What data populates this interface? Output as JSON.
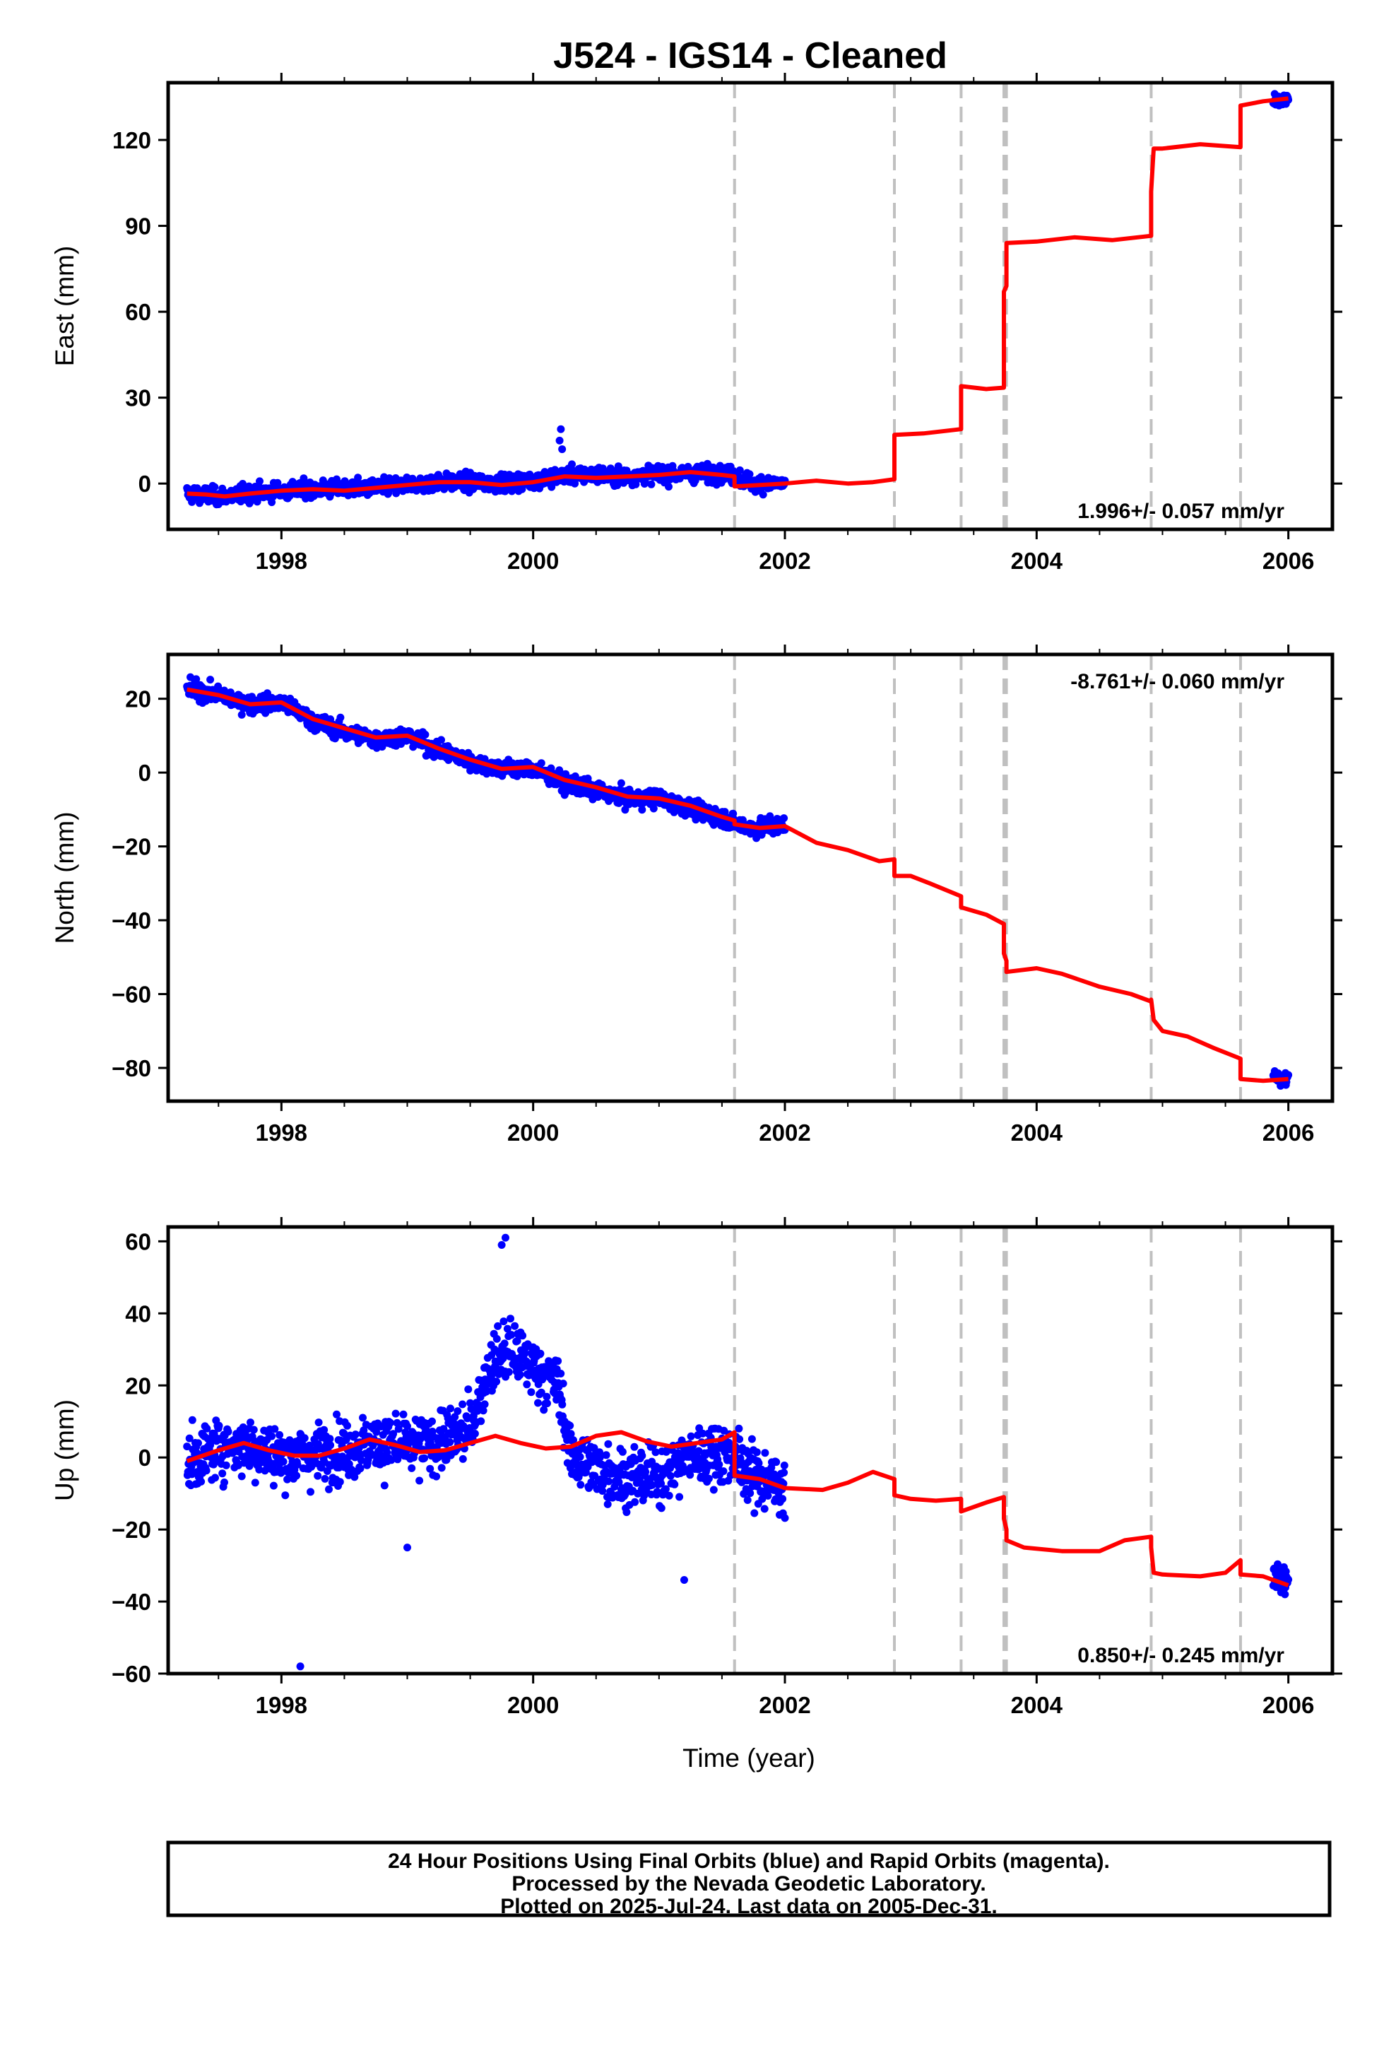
{
  "title": "J524  - IGS14 - Cleaned",
  "footer": {
    "line1": "24 Hour Positions Using Final Orbits (blue) and Rapid Orbits (magenta).",
    "line2": "Processed by the Nevada Geodetic Laboratory.",
    "line3": "Plotted on 2025-Jul-24. Last data on 2005-Dec-31."
  },
  "colors": {
    "final_points": "#0000ff",
    "model": "#ff0000",
    "offset_lines": "#c0c0c0",
    "frame": "#000000"
  },
  "chart_data": [
    {
      "type": "scatter",
      "ylabel": "East (mm)",
      "xlabel": "",
      "xlim": [
        1997.1,
        2006.35
      ],
      "ylim": [
        -16,
        140
      ],
      "xticks": [
        "1998",
        "2000",
        "2002",
        "2004",
        "2006"
      ],
      "yticks": [
        0,
        30,
        60,
        90,
        120
      ],
      "rate_label": "1.996+/- 0.057 mm/yr",
      "rate_position": "bottom-right",
      "offset_epochs": [
        2001.6,
        2002.87,
        2003.4,
        2003.74,
        2003.76,
        2004.91,
        2005.62
      ],
      "series": [
        {
          "kind": "points",
          "segments": [
            {
              "x": [
                1997.25,
                1997.5,
                1997.75,
                1998.0,
                1998.25,
                1998.5,
                1998.75,
                1999.0,
                1999.25,
                1999.5,
                1999.75,
                2000.0,
                2000.25,
                2000.5,
                2000.75,
                2001.0,
                2001.25,
                2001.5,
                2001.6,
                2001.75,
                2002.0
              ],
              "y": [
                -3.5,
                -4.5,
                -3.5,
                -2.5,
                -2,
                -1.8,
                -1.5,
                -0.5,
                0.5,
                0.5,
                0.2,
                1,
                3,
                3,
                2.5,
                3.5,
                3.5,
                3.5,
                2.8,
                0,
                0
              ],
              "scatter": 2.5
            },
            {
              "x": [
                2005.88,
                2006.0
              ],
              "y": [
                133,
                134
              ],
              "scatter": 1.8
            }
          ],
          "outliers": [
            {
              "x": 2000.22,
              "y": 19
            },
            {
              "x": 2000.21,
              "y": 15
            },
            {
              "x": 2000.23,
              "y": 12
            }
          ]
        },
        {
          "kind": "model",
          "x": [
            1997.25,
            1997.4,
            1997.55,
            1997.75,
            1998.0,
            1998.25,
            1998.5,
            1998.75,
            1999.0,
            1999.25,
            1999.5,
            1999.75,
            2000.0,
            2000.25,
            2000.5,
            2000.75,
            2001.0,
            2001.25,
            2001.5,
            2001.6,
            2001.6,
            2001.8,
            2002.0,
            2002.25,
            2002.5,
            2002.7,
            2002.87,
            2002.87,
            2003.1,
            2003.4,
            2003.4,
            2003.6,
            2003.74,
            2003.74,
            2003.76,
            2003.76,
            2004.0,
            2004.3,
            2004.6,
            2004.91,
            2004.91,
            2004.93,
            2005.0,
            2005.3,
            2005.62,
            2005.62,
            2005.8,
            2006.0
          ],
          "y": [
            -3.5,
            -3.8,
            -4.5,
            -3.5,
            -2.5,
            -2,
            -2.5,
            -1.5,
            -0.5,
            0.5,
            0.5,
            -0.5,
            0.5,
            2.5,
            2,
            2.5,
            3,
            4,
            3,
            2.5,
            -1,
            -0.5,
            0,
            1,
            0,
            0.5,
            1.5,
            17,
            17.5,
            19,
            34,
            33,
            33.5,
            67,
            69,
            84,
            84.5,
            86,
            85,
            86.5,
            102,
            117,
            117,
            118.5,
            117.5,
            132,
            133.5,
            134.5
          ]
        }
      ]
    },
    {
      "type": "scatter",
      "ylabel": "North (mm)",
      "xlabel": "",
      "xlim": [
        1997.1,
        2006.35
      ],
      "ylim": [
        -89,
        32
      ],
      "xticks": [
        "1998",
        "2000",
        "2002",
        "2004",
        "2006"
      ],
      "yticks": [
        20,
        0,
        -20,
        -40,
        -60,
        -80
      ],
      "rate_label": "-8.761+/- 0.060 mm/yr",
      "rate_position": "top-right",
      "offset_epochs": [
        2001.6,
        2002.87,
        2003.4,
        2003.74,
        2003.76,
        2004.91,
        2005.62
      ],
      "series": [
        {
          "kind": "points",
          "segments": [
            {
              "x": [
                1997.25,
                1997.5,
                1997.75,
                1998.0,
                1998.25,
                1998.5,
                1998.75,
                1999.0,
                1999.25,
                1999.5,
                1999.75,
                2000.0,
                2000.25,
                2000.5,
                2000.75,
                2001.0,
                2001.25,
                2001.5,
                2001.6,
                2001.75,
                2002.0
              ],
              "y": [
                23,
                21,
                18.5,
                19,
                14,
                11,
                9,
                10,
                6,
                3,
                1,
                1,
                -3,
                -5,
                -7,
                -7,
                -10,
                -12,
                -14,
                -15,
                -14
              ],
              "scatter": 2.0
            },
            {
              "x": [
                2005.88,
                2006.0
              ],
              "y": [
                -82.5,
                -83
              ],
              "scatter": 1.8
            }
          ],
          "outliers": []
        },
        {
          "kind": "model",
          "x": [
            1997.25,
            1997.5,
            1997.75,
            1998.0,
            1998.25,
            1998.5,
            1998.75,
            1999.0,
            1999.25,
            1999.5,
            1999.75,
            2000.0,
            2000.25,
            2000.5,
            2000.75,
            2001.0,
            2001.25,
            2001.5,
            2001.6,
            2001.6,
            2001.8,
            2002.0,
            2002.25,
            2002.5,
            2002.75,
            2002.87,
            2002.87,
            2003.0,
            2003.15,
            2003.4,
            2003.4,
            2003.6,
            2003.74,
            2003.74,
            2003.76,
            2003.76,
            2004.0,
            2004.2,
            2004.5,
            2004.75,
            2004.91,
            2004.91,
            2004.93,
            2005.0,
            2005.2,
            2005.4,
            2005.62,
            2005.62,
            2005.8,
            2006.0
          ],
          "y": [
            22.5,
            21,
            18.5,
            19,
            14.5,
            12,
            9.5,
            10,
            6.5,
            3.5,
            1,
            1.5,
            -2,
            -4,
            -6.5,
            -7,
            -9,
            -12,
            -13,
            -14,
            -15,
            -14.5,
            -19,
            -21,
            -24,
            -23.5,
            -28,
            -28,
            -30,
            -33.5,
            -36.5,
            -38.5,
            -41,
            -49,
            -51,
            -54,
            -53,
            -54.5,
            -58,
            -60,
            -62,
            -61.5,
            -67,
            -70,
            -71.5,
            -74.5,
            -77.5,
            -83,
            -83.5,
            -83
          ]
        }
      ]
    },
    {
      "type": "scatter",
      "ylabel": "Up (mm)",
      "xlabel": "Time (year)",
      "xlim": [
        1997.1,
        2006.35
      ],
      "ylim": [
        -60,
        64
      ],
      "xticks": [
        "1998",
        "2000",
        "2002",
        "2004",
        "2006"
      ],
      "yticks": [
        60,
        40,
        20,
        0,
        -20,
        -40,
        -60
      ],
      "rate_label": "0.850+/- 0.245 mm/yr",
      "rate_position": "bottom-right",
      "offset_epochs": [
        2001.6,
        2002.87,
        2003.4,
        2003.74,
        2003.76,
        2004.91,
        2005.62
      ],
      "series": [
        {
          "kind": "points",
          "segments": [
            {
              "x": [
                1997.25,
                1997.5,
                1997.75,
                1998.0,
                1998.25,
                1998.5,
                1998.75,
                1999.0,
                1999.25,
                1999.5,
                1999.65,
                1999.8,
                2000.0,
                2000.2,
                2000.3,
                2000.5,
                2000.75,
                2001.0,
                2001.25,
                2001.5,
                2001.6,
                2001.75,
                2002.0
              ],
              "y": [
                -2,
                3,
                3,
                0,
                1,
                2,
                4,
                3,
                4,
                8,
                25,
                30,
                25,
                20,
                0,
                -3,
                -6,
                -5,
                0,
                2,
                0,
                -5,
                -8
              ],
              "scatter": 7.0
            },
            {
              "x": [
                2005.88,
                2006.0
              ],
              "y": [
                -33,
                -35
              ],
              "scatter": 3.5
            }
          ],
          "outliers": [
            {
              "x": 1998.15,
              "y": -58
            },
            {
              "x": 1999.78,
              "y": 61
            },
            {
              "x": 1999.75,
              "y": 59
            },
            {
              "x": 1999.0,
              "y": -25
            },
            {
              "x": 2001.2,
              "y": -34
            }
          ]
        },
        {
          "kind": "model",
          "x": [
            1997.25,
            1997.5,
            1997.7,
            1997.9,
            1998.1,
            1998.3,
            1998.5,
            1998.7,
            1998.9,
            1999.1,
            1999.3,
            1999.5,
            1999.7,
            1999.9,
            2000.1,
            2000.3,
            2000.5,
            2000.7,
            2000.9,
            2001.1,
            2001.3,
            2001.5,
            2001.6,
            2001.6,
            2001.8,
            2002.0,
            2002.3,
            2002.5,
            2002.7,
            2002.87,
            2002.87,
            2003.0,
            2003.2,
            2003.4,
            2003.4,
            2003.6,
            2003.74,
            2003.74,
            2003.76,
            2003.76,
            2003.9,
            2004.2,
            2004.5,
            2004.7,
            2004.91,
            2004.91,
            2004.93,
            2005.0,
            2005.3,
            2005.5,
            2005.62,
            2005.62,
            2005.8,
            2006.0
          ],
          "y": [
            -1,
            2,
            4,
            2,
            0.5,
            0.5,
            2.5,
            5,
            3.5,
            1.5,
            2,
            4,
            6,
            4,
            2.5,
            3,
            6,
            7,
            4.5,
            3,
            4,
            5,
            7,
            -5,
            -6,
            -8.5,
            -9,
            -7,
            -4,
            -6,
            -10.5,
            -11.5,
            -12,
            -11.5,
            -15,
            -12.5,
            -11,
            -17,
            -20,
            -23,
            -25,
            -26,
            -26,
            -23,
            -22,
            -25,
            -32,
            -32.5,
            -33,
            -32,
            -28.5,
            -32.5,
            -33,
            -35.5
          ]
        }
      ]
    }
  ]
}
